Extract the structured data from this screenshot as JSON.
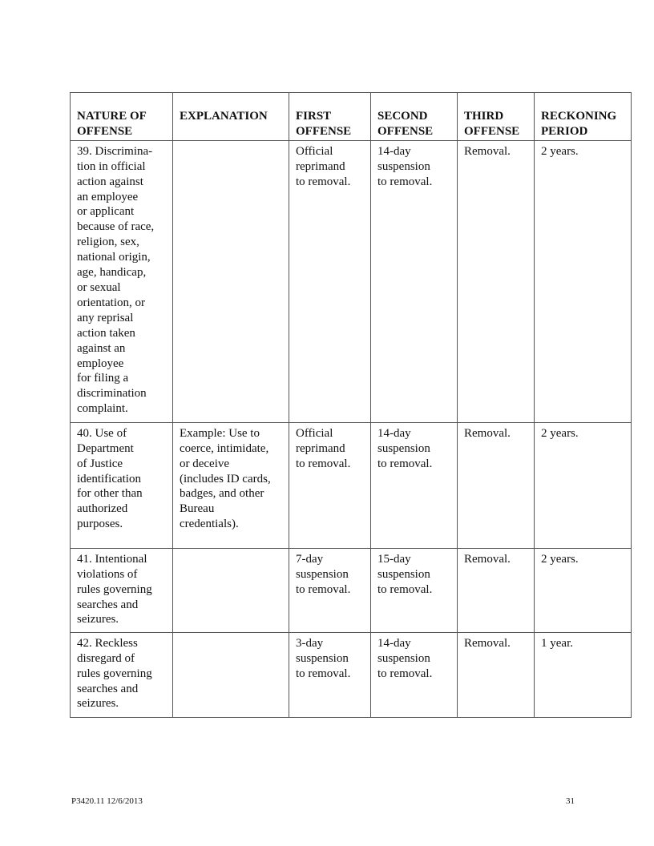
{
  "table": {
    "headers": [
      [
        "NATURE OF",
        "OFFENSE"
      ],
      [
        "EXPLANATION"
      ],
      [
        "FIRST",
        "OFFENSE"
      ],
      [
        "SECOND",
        "OFFENSE"
      ],
      [
        "THIRD",
        "OFFENSE"
      ],
      [
        "RECKONING",
        "PERIOD"
      ]
    ],
    "rows": [
      [
        [
          "39. Discrimina-",
          "tion in official",
          "action against",
          "an employee",
          "or applicant",
          "because of race,",
          "religion, sex,",
          "national origin,",
          "age, handicap,",
          "or sexual",
          "orientation, or",
          "any reprisal",
          "action taken",
          "against an",
          "employee",
          "for filing a",
          "discrimination",
          "complaint."
        ],
        [],
        [
          "Official",
          "reprimand",
          "to removal."
        ],
        [
          "14-day",
          "suspension",
          "to removal."
        ],
        [
          "Removal."
        ],
        [
          "2 years."
        ]
      ],
      [
        [
          "40. Use of",
          "Department",
          "of Justice",
          "identification",
          "for other than",
          "authorized",
          "purposes."
        ],
        [
          "Example:  Use to",
          "coerce, intimidate,",
          "or deceive",
          "(includes ID cards,",
          "badges, and other",
          "Bureau",
          "credentials)."
        ],
        [
          "Official",
          "reprimand",
          "to removal."
        ],
        [
          "14-day",
          "suspension",
          "to removal."
        ],
        [
          "Removal."
        ],
        [
          "2 years."
        ]
      ],
      [
        [
          "41. Intentional",
          "violations of",
          "rules governing",
          "searches and",
          "seizures."
        ],
        [],
        [
          "7-day",
          "suspension",
          "to removal."
        ],
        [
          "15-day",
          "suspension",
          "to removal."
        ],
        [
          "Removal."
        ],
        [
          "2 years."
        ]
      ],
      [
        [
          "42. Reckless",
          "disregard of",
          "rules governing",
          "searches and",
          "seizures."
        ],
        [],
        [
          "3-day",
          "suspension",
          "to removal."
        ],
        [
          "14-day",
          "suspension",
          "to removal."
        ],
        [
          "Removal."
        ],
        [
          "1 year."
        ]
      ]
    ]
  },
  "footer": {
    "doc_id": "P3420.11   12/6/2013",
    "page_number": "31"
  }
}
